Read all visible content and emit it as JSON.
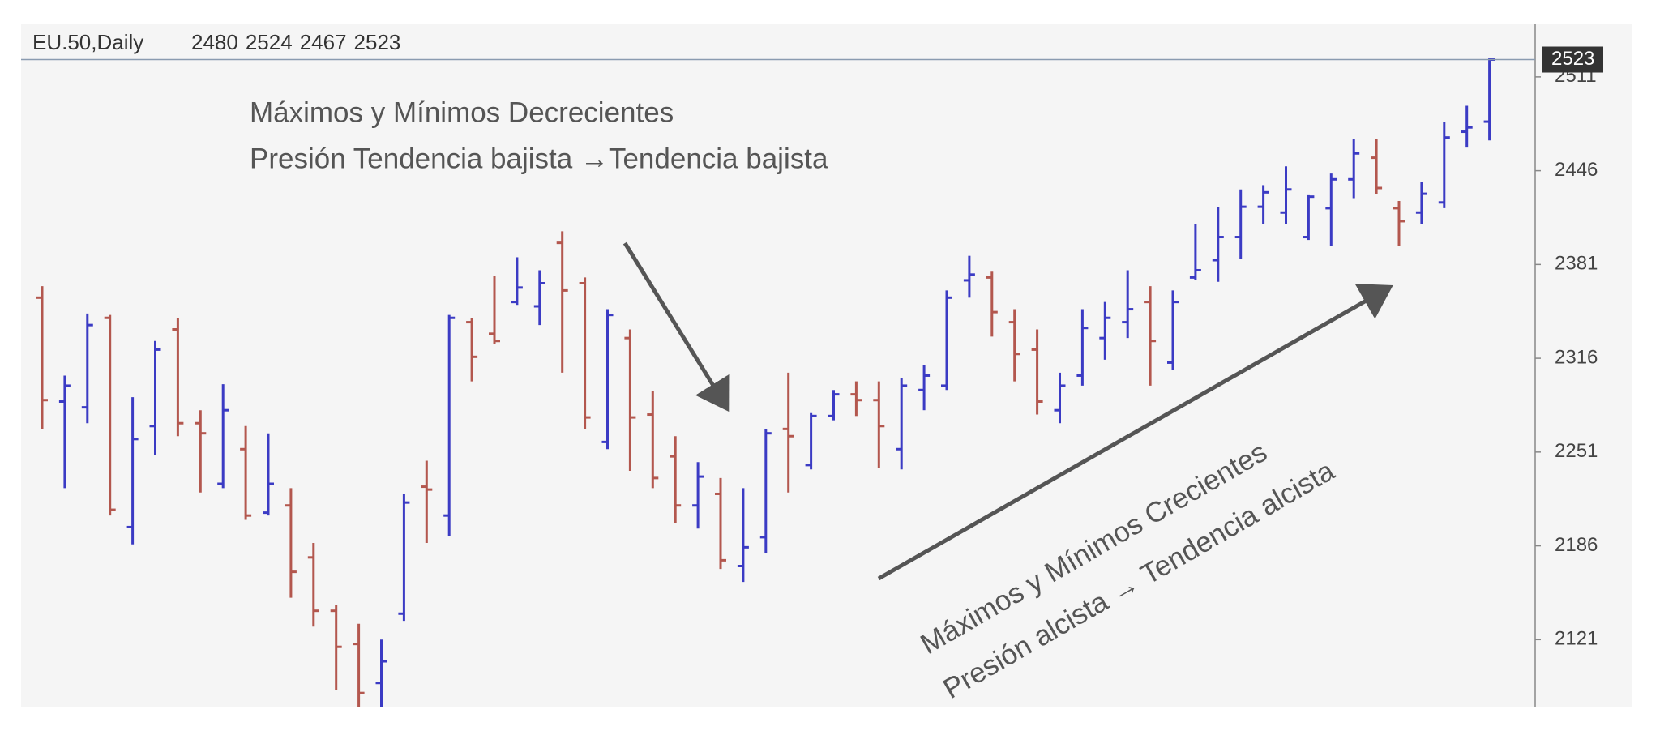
{
  "chart_data": {
    "type": "ohlc",
    "title": "EU.50,Daily",
    "open": [
      2358,
      2286,
      2282,
      2344,
      2199,
      2269,
      2336,
      2271,
      2229,
      2253,
      2209,
      2214,
      2178,
      2141,
      2118,
      2091,
      2139,
      2227,
      2207,
      2341,
      2333,
      2355,
      2352,
      2396,
      2368,
      2258,
      2330,
      2277,
      2248,
      2214,
      2222,
      2172,
      2192,
      2267,
      2242,
      2276,
      2291,
      2287,
      2253,
      2294,
      2297,
      2370,
      2372,
      2341,
      2322,
      2280,
      2304,
      2330,
      2341,
      2355,
      2313,
      2372,
      2384,
      2400,
      2421,
      2417,
      2400,
      2420,
      2440,
      2455,
      2420,
      2417,
      2424,
      2473,
      2480
    ],
    "high": [
      2366,
      2304,
      2347,
      2346,
      2289,
      2328,
      2344,
      2280,
      2298,
      2269,
      2264,
      2226,
      2188,
      2145,
      2132,
      2121,
      2222,
      2245,
      2346,
      2344,
      2373,
      2386,
      2377,
      2404,
      2372,
      2350,
      2336,
      2293,
      2262,
      2244,
      2233,
      2226,
      2267,
      2306,
      2278,
      2294,
      2300,
      2300,
      2302,
      2311,
      2363,
      2387,
      2376,
      2350,
      2336,
      2306,
      2350,
      2355,
      2377,
      2366,
      2363,
      2409,
      2421,
      2433,
      2436,
      2449,
      2429,
      2444,
      2468,
      2468,
      2425,
      2438,
      2480,
      2491,
      2524
    ],
    "low": [
      2267,
      2226,
      2271,
      2207,
      2187,
      2249,
      2262,
      2223,
      2226,
      2204,
      2207,
      2150,
      2130,
      2086,
      2070,
      2070,
      2134,
      2188,
      2193,
      2300,
      2326,
      2353,
      2339,
      2306,
      2267,
      2253,
      2238,
      2226,
      2202,
      2198,
      2170,
      2161,
      2181,
      2223,
      2239,
      2273,
      2276,
      2240,
      2239,
      2280,
      2294,
      2358,
      2331,
      2300,
      2277,
      2271,
      2297,
      2315,
      2330,
      2297,
      2308,
      2370,
      2369,
      2385,
      2409,
      2409,
      2398,
      2394,
      2427,
      2430,
      2394,
      2409,
      2420,
      2462,
      2467
    ],
    "close": [
      2287,
      2297,
      2339,
      2211,
      2260,
      2322,
      2271,
      2264,
      2280,
      2207,
      2229,
      2168,
      2141,
      2116,
      2084,
      2106,
      2216,
      2225,
      2344,
      2317,
      2328,
      2365,
      2368,
      2363,
      2275,
      2346,
      2275,
      2233,
      2214,
      2234,
      2176,
      2185,
      2264,
      2262,
      2276,
      2291,
      2287,
      2269,
      2297,
      2304,
      2358,
      2374,
      2348,
      2319,
      2286,
      2297,
      2337,
      2344,
      2350,
      2328,
      2355,
      2377,
      2400,
      2421,
      2431,
      2433,
      2428,
      2440,
      2458,
      2434,
      2411,
      2430,
      2469,
      2476,
      2523
    ],
    "up_color": "#3b3bc4",
    "down_color": "#b3574e",
    "ylim": [
      2074,
      2548
    ],
    "yticks": [
      2121,
      2186,
      2251,
      2316,
      2381,
      2446,
      2511
    ],
    "annotations": [
      {
        "lines": [
          "Máximos y Mínimos  Decrecientes",
          "Presión  Tendencia bajista →Tendencia bajista"
        ]
      },
      {
        "lines": [
          "Máximos y Mínimos Crecientes",
          "Presión alcista → Tendencia alcista"
        ]
      }
    ]
  }
}
